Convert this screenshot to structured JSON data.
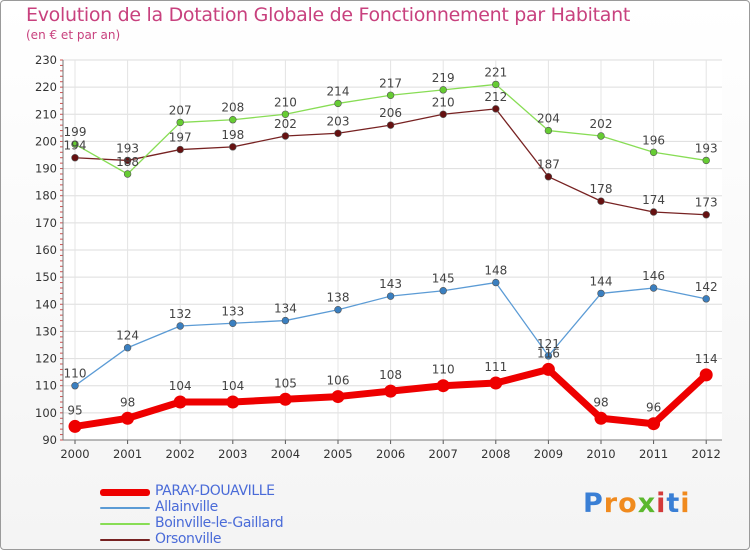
{
  "title": "Evolution de la Dotation Globale de Fonctionnement par Habitant",
  "subtitle": "(en € et par an)",
  "logo": {
    "text": "Proxiti",
    "letters": [
      "P",
      "r",
      "o",
      "x",
      "i",
      "t",
      "i"
    ],
    "colors": [
      "#3a7fd5",
      "#f08a1e",
      "#f08a1e",
      "#5cb82e",
      "#d33a3a",
      "#3a7fd5",
      "#f08a1e"
    ]
  },
  "chart_data": {
    "type": "line",
    "title": "Evolution de la Dotation Globale de Fonctionnement par Habitant",
    "subtitle": "(en € et par an)",
    "xlabel": "",
    "ylabel": "",
    "ylim": [
      90,
      230
    ],
    "yticks": [
      90,
      100,
      110,
      120,
      130,
      140,
      150,
      160,
      170,
      180,
      190,
      200,
      210,
      220,
      230
    ],
    "grid": true,
    "legend_position": "bottom-left",
    "x": [
      "2000",
      "2001",
      "2002",
      "2003",
      "2004",
      "2005",
      "2006",
      "2007",
      "2008",
      "2009",
      "2010",
      "2011",
      "2012"
    ],
    "series": [
      {
        "name": "PARAY-DOUAVILLE",
        "color": "#ee0000",
        "values": [
          95,
          98,
          104,
          104,
          105,
          106,
          108,
          110,
          111,
          116,
          98,
          96,
          114
        ],
        "labels": [
          "95",
          "98",
          "104",
          "104",
          "105",
          "106",
          "108",
          "110",
          "111",
          "116",
          "98",
          "96",
          "114"
        ]
      },
      {
        "name": "Allainville",
        "color": "#5b9bd5",
        "values": [
          110,
          124,
          132,
          133,
          134,
          138,
          143,
          145,
          148,
          121,
          144,
          146,
          142
        ],
        "labels": [
          "110",
          "124",
          "132",
          "133",
          "134",
          "138",
          "143",
          "145",
          "148",
          "121",
          "144",
          "146",
          "142"
        ]
      },
      {
        "name": "Boinville-le-Gaillard",
        "color": "#88dd55",
        "values": [
          199,
          188,
          207,
          208,
          210,
          214,
          217,
          219,
          221,
          204,
          202,
          196,
          193
        ],
        "labels": [
          "199",
          "188",
          "207",
          "208",
          "210",
          "214",
          "217",
          "219",
          "221",
          "204",
          "202",
          "196",
          "193"
        ]
      },
      {
        "name": "Orsonville",
        "color": "#772222",
        "values": [
          194,
          193,
          197,
          198,
          202,
          203,
          206,
          210,
          212,
          187,
          178,
          174,
          173
        ],
        "labels": [
          "194",
          "193",
          "197",
          "198",
          "202",
          "203",
          "206",
          "210",
          "212",
          "187",
          "178",
          "174",
          "173"
        ]
      }
    ]
  }
}
